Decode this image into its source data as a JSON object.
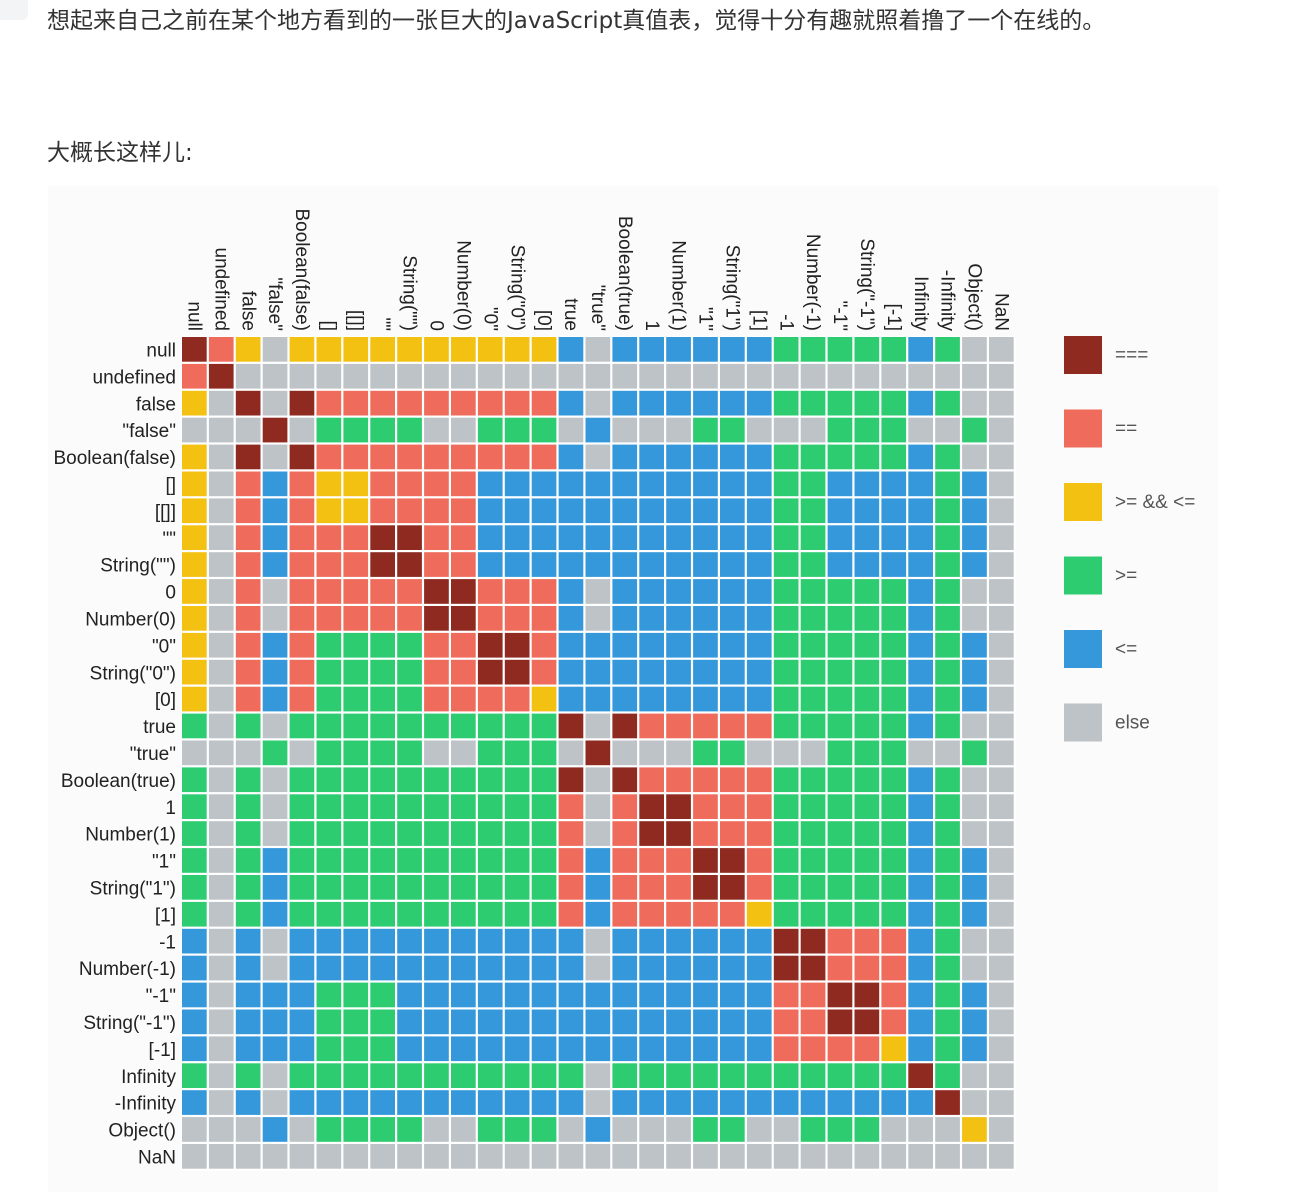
{
  "article": {
    "intro": "想起来自己之前在某个地方看到的一张巨大的JavaScript真值表，觉得十分有趣就照着撸了一个在线的。",
    "caption": "大概长这样儿:"
  },
  "chart_data": {
    "type": "heatmap",
    "labels": [
      "null",
      "undefined",
      "false",
      "\"false\"",
      "Boolean(false)",
      "[]",
      "[[]]",
      "\"\"",
      "String(\"\")",
      "0",
      "Number(0)",
      "\"0\"",
      "String(\"0\")",
      "[0]",
      "true",
      "\"true\"",
      "Boolean(true)",
      "1",
      "Number(1)",
      "\"1\"",
      "String(\"1\")",
      "[1]",
      "-1",
      "Number(-1)",
      "\"-1\"",
      "String(\"-1\")",
      "[-1]",
      "Infinity",
      "-Infinity",
      "Object()",
      "NaN"
    ],
    "legend": [
      {
        "key": "S",
        "label": "===",
        "color": "#8e2a20"
      },
      {
        "key": "E",
        "label": "==",
        "color": "#ef6b5c"
      },
      {
        "key": "Y",
        "label": ">= && <=",
        "color": "#f3c112"
      },
      {
        "key": "G",
        "label": ">=",
        "color": "#2ecc71"
      },
      {
        "key": "B",
        "label": "<=",
        "color": "#3498db"
      },
      {
        "key": "X",
        "label": "else",
        "color": "#bdc3c7"
      }
    ],
    "cells": [
      "SEYXYYYYYYYYYYBXBBBBBBGGGGGBGXX",
      "ESXXXXXXXXXXXXXXXXXXXXXXXXXXXXX",
      "YXSXSEEEEEEEEEBXBBBBBBGGGGGBGXX",
      "XXXSXGGGGXXGGGXBXXXGGXXXGGGXXGX",
      "YXSXSEEEEEEEEEBXBBBBBBGGGGGBGXX",
      "YXEBEYYEEEEBBBBBBBBBBBGGBBBBGBX",
      "YXEBEYYEEEEBBBBBBBBBBBGGBBBBGBX",
      "YXEBEEESSEEBBBBBBBBBBBGGBBBBGBX",
      "YXEBEEESSEEBBBBBBBBBBBGGBBBBGBX",
      "YXEXEEEEESSEEEBXBBBBBBGGGGGBGXX",
      "YXEXEEEEESSEEEBXBBBBBBGGGGGBGXX",
      "YXEBEGGGGEESSEBBBBBBBBGGGGGBGBX",
      "YXEBEGGGGEESSEBBBBBBBBGGGGGBGBX",
      "YXEBEGGGGEEEEYBBBBBBBBGGGGGBGBX",
      "GXGXGGGGGGGGGGSXSEEEEEGGGGGBGXX",
      "XXXGXGGGGXXGGGXSXXXGGXXXGGGXXGX",
      "GXGXGGGGGGGGGGSXSEEEEEGGGGGBGXX",
      "GXGXGGGGGGGGGGEXESSEEEGGGGGBGXX",
      "GXGXGGGGGGGGGGEXESSEEEGGGGGBGXX",
      "GXGBGGGGGGGGGGEBEEESSEGGGGGBGBX",
      "GXGBGGGGGGGGGGEBEEESSEGGGGGBGBX",
      "GXGBGGGGGGGGGGEBEEEEEYGGGGGBGBX",
      "BXBXBBBBBBBBBBBXBBBBBBSSEEEBGXX",
      "BXBXBBBBBBBBBBBXBBBBBBSSEEEBGXX",
      "BXBBBGGGBBBBBBBBBBBBBBEESSEBGBX",
      "BXBBBGGGBBBBBBBBBBBBBBEESSEBGBX",
      "BXBBBGGGBBBBBBBBBBBBBBEEEEYBGBX",
      "GXGXGGGGGGGGGGGXGGGGGGGGGGGSGXX",
      "BXBXBBBBBBBBBBBXBBBBBBBBBBBBSXX",
      "XXXBXGGGGXXGGGXBXXXGGXXGGGXXXYX",
      "XXXXXXXXXXXXXXXXXXXXXXXXXXXXXXX"
    ]
  }
}
